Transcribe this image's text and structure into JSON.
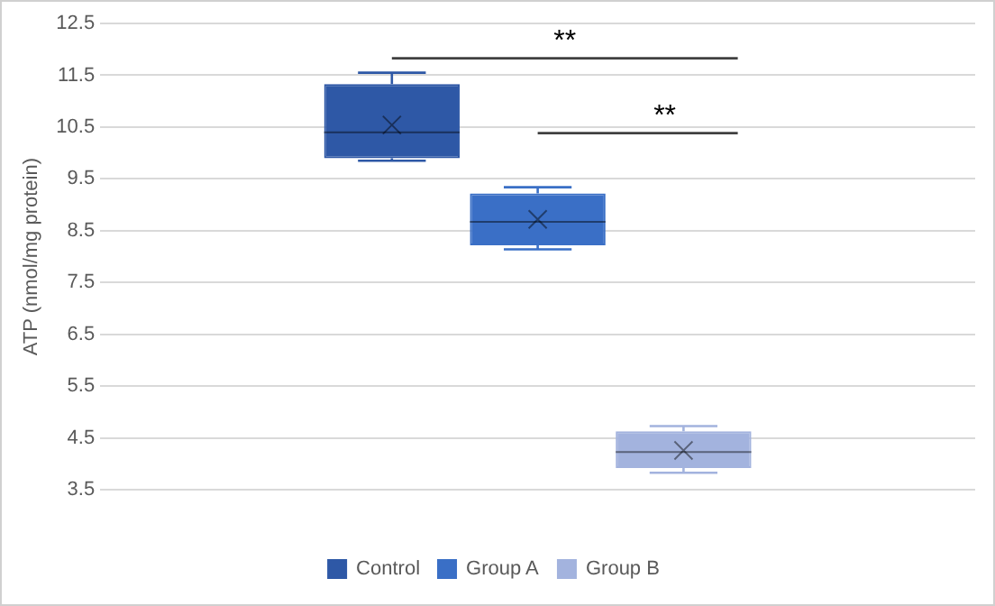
{
  "chart_data": {
    "type": "box",
    "ylabel": "ATP (nmol/mg protein)",
    "categories": [
      null
    ],
    "series": [
      {
        "name": "Control",
        "color": "#2e58a6",
        "boxes": [
          {
            "low": 9.85,
            "q1": 9.9,
            "median": 10.4,
            "q3": 11.33,
            "high": 11.55,
            "mean": 10.54
          }
        ]
      },
      {
        "name": "Group A",
        "color": "#3a6fc6",
        "boxes": [
          {
            "low": 8.14,
            "q1": 8.22,
            "median": 8.67,
            "q3": 9.22,
            "high": 9.34,
            "mean": 8.72
          }
        ]
      },
      {
        "name": "Group B",
        "color": "#a3b3de",
        "boxes": [
          {
            "low": 3.83,
            "q1": 3.92,
            "median": 4.23,
            "q3": 4.63,
            "high": 4.73,
            "mean": 4.26
          }
        ]
      }
    ],
    "ylim": [
      3.5,
      12.5
    ],
    "yticks": [
      3.5,
      4.5,
      5.5,
      6.5,
      7.5,
      8.5,
      9.5,
      10.5,
      11.5,
      12.5
    ],
    "grid": "y",
    "legend": "bottom",
    "annotations": [
      "**",
      "**"
    ]
  }
}
